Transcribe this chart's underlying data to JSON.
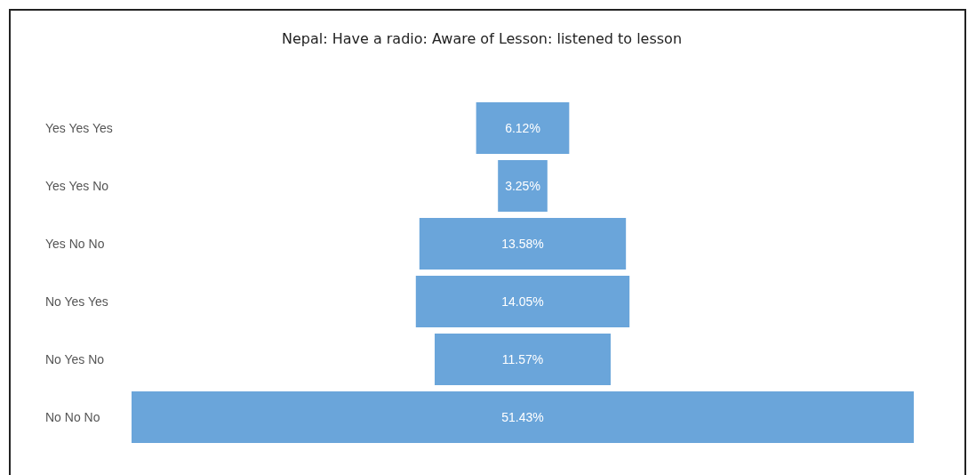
{
  "chart_data": {
    "type": "other",
    "title": "Nepal: Have a radio: Aware of Lesson: listened to lesson",
    "categories": [
      "Yes Yes Yes",
      "Yes Yes No",
      "Yes No No",
      "No Yes Yes",
      "No Yes No",
      "No No No"
    ],
    "values": [
      6.12,
      3.25,
      13.58,
      14.05,
      11.57,
      51.43
    ],
    "value_labels": [
      "6.12%",
      "3.25%",
      "13.58%",
      "14.05%",
      "11.57%",
      "51.43%"
    ],
    "color": "#6aa5da"
  }
}
